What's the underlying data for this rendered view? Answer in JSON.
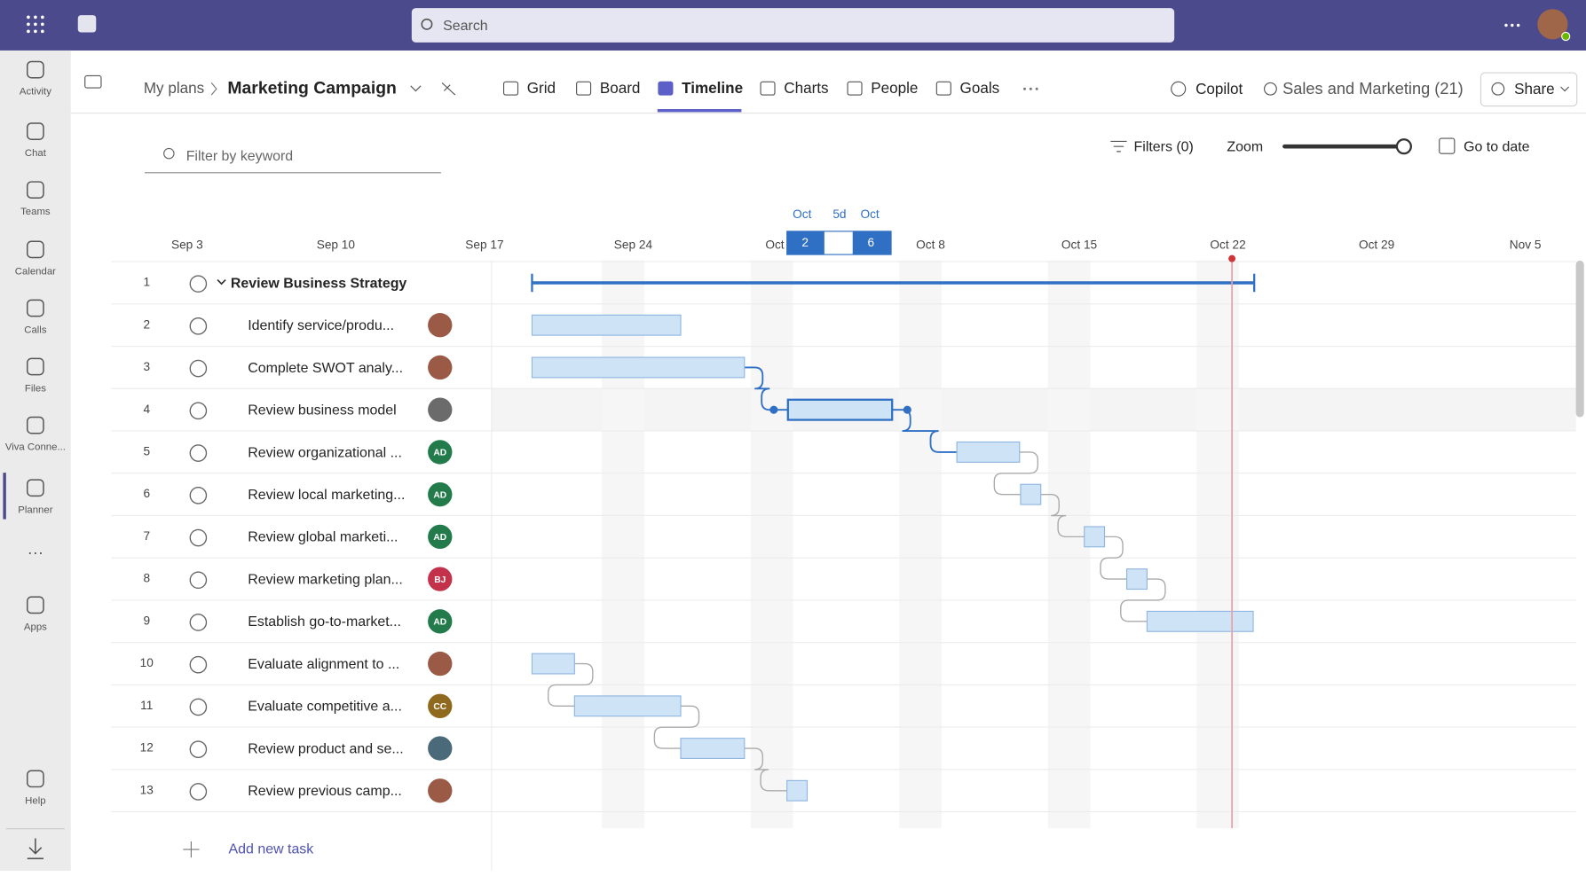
{
  "app_bar": {
    "search": "Search"
  },
  "rail": [
    "Activity",
    "Chat",
    "Teams",
    "Calendar",
    "Calls",
    "Files",
    "Viva Conne...",
    "Planner",
    "Apps",
    "Help"
  ],
  "header": {
    "breadcrumb": "My plans",
    "plan": "Marketing Campaign",
    "tabs": [
      "Grid",
      "Board",
      "Timeline",
      "Charts",
      "People",
      "Goals"
    ],
    "copilot": "Copilot",
    "group": "Sales and Marketing (21)",
    "share": "Share"
  },
  "toolbar": {
    "filter_placeholder": "Filter by keyword",
    "filters": "Filters (0)",
    "zoom": "Zoom",
    "go_to_date": "Go to date"
  },
  "timeline": {
    "selection": {
      "start_month": "Oct",
      "duration": "5d",
      "end_month": "Oct",
      "start_day": "2",
      "end_day": "6"
    },
    "dates": [
      "Sep 3",
      "Sep 10",
      "Sep 17",
      "Sep 24",
      "Oct",
      "Oct 8",
      "Oct 15",
      "Oct 22",
      "Oct 29",
      "Nov 5"
    ]
  },
  "tasks": [
    {
      "number": 1,
      "name": "Review Business Strategy"
    },
    {
      "number": 2,
      "name": "Identify service/produ..."
    },
    {
      "number": 3,
      "name": "Complete SWOT analy..."
    },
    {
      "number": 4,
      "name": "Review business model"
    },
    {
      "number": 5,
      "name": "Review organizational ...",
      "assignee": "AD"
    },
    {
      "number": 6,
      "name": "Review local marketing...",
      "assignee": "AD"
    },
    {
      "number": 7,
      "name": "Review global marketi...",
      "assignee": "AD"
    },
    {
      "number": 8,
      "name": "Review marketing plan...",
      "assignee": "BJ"
    },
    {
      "number": 9,
      "name": "Establish go-to-market...",
      "assignee": "AD"
    },
    {
      "number": 10,
      "name": "Evaluate alignment to ..."
    },
    {
      "number": 11,
      "name": "Evaluate competitive a...",
      "assignee": "CC"
    },
    {
      "number": 12,
      "name": "Review product and se..."
    },
    {
      "number": 13,
      "name": "Review previous camp..."
    }
  ],
  "add_task": "Add new task"
}
